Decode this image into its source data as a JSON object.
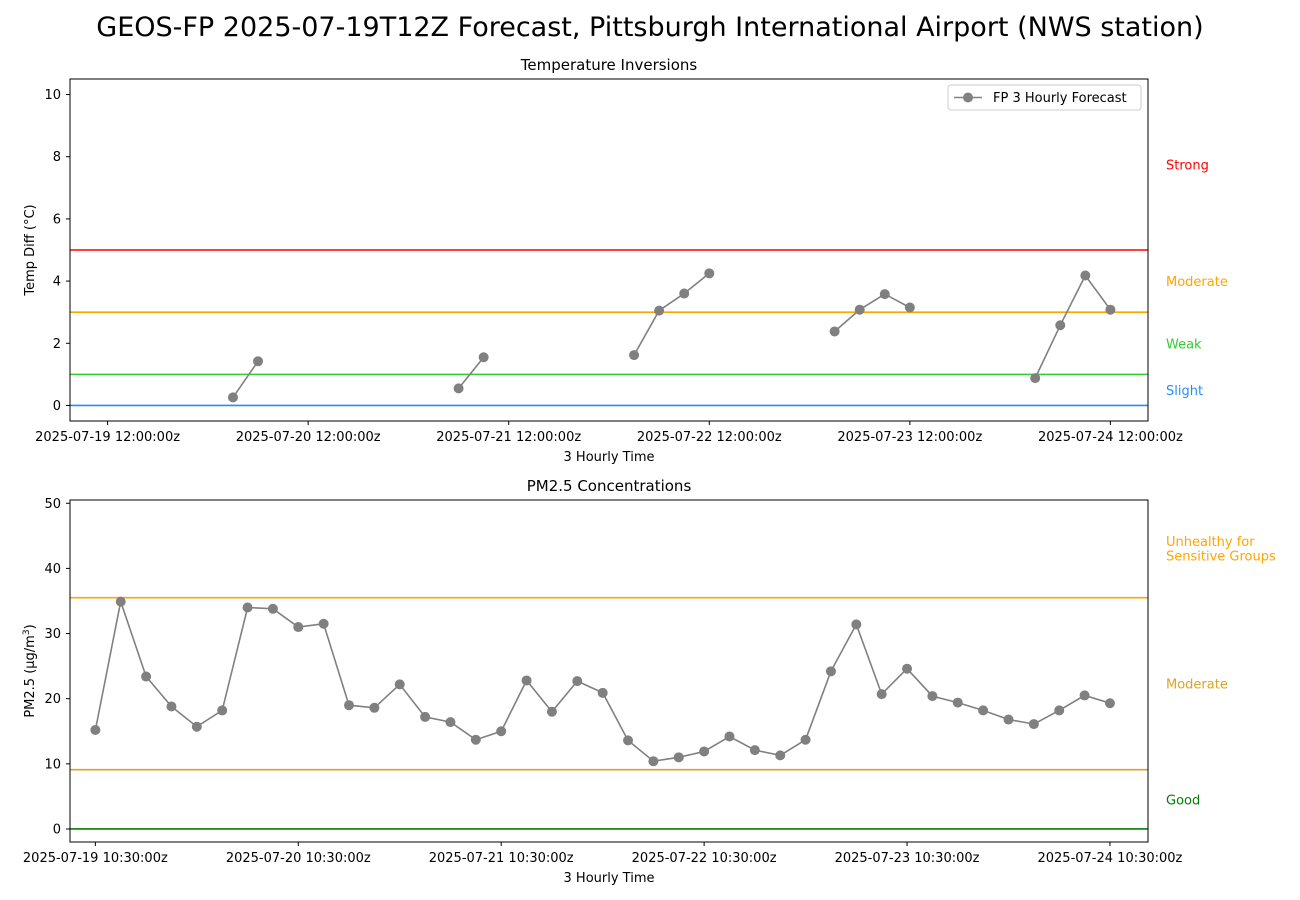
{
  "suptitle": "GEOS-FP 2025-07-19T12Z Forecast, Pittsburgh International Airport (NWS station)",
  "chart_data": [
    {
      "type": "line",
      "title": "Temperature Inversions",
      "xlabel": "3 Hourly Time",
      "ylabel": "Temp Diff (°C)",
      "ylim": [
        -0.5,
        10.5
      ],
      "yticks": [
        0,
        2,
        4,
        6,
        8,
        10
      ],
      "xlim": [
        -1.5,
        41.5
      ],
      "xtick_labels": [
        {
          "i": 0,
          "label": "2025-07-19 12:00:00z"
        },
        {
          "i": 8,
          "label": "2025-07-20 12:00:00z"
        },
        {
          "i": 16,
          "label": "2025-07-21 12:00:00z"
        },
        {
          "i": 24,
          "label": "2025-07-22 12:00:00z"
        },
        {
          "i": 32,
          "label": "2025-07-23 12:00:00z"
        },
        {
          "i": 40,
          "label": "2025-07-24 12:00:00z"
        }
      ],
      "legend": {
        "label": "FP 3 Hourly Forecast",
        "placement": "upper right"
      },
      "grid": false,
      "series": [
        {
          "name": "FP 3 Hourly Forecast",
          "color": "#808080",
          "segments": [
            [
              {
                "i": 5,
                "y": 0.26
              },
              {
                "i": 6,
                "y": 1.42
              }
            ],
            [
              {
                "i": 14,
                "y": 0.55
              },
              {
                "i": 15,
                "y": 1.55
              }
            ],
            [
              {
                "i": 21,
                "y": 1.62
              },
              {
                "i": 22,
                "y": 3.05
              },
              {
                "i": 23,
                "y": 3.6
              },
              {
                "i": 24,
                "y": 4.25
              }
            ],
            [
              {
                "i": 29,
                "y": 2.38
              },
              {
                "i": 30,
                "y": 3.08
              },
              {
                "i": 31,
                "y": 3.58
              },
              {
                "i": 32,
                "y": 3.15
              }
            ],
            [
              {
                "i": 37,
                "y": 0.88
              },
              {
                "i": 38,
                "y": 2.58
              },
              {
                "i": 39,
                "y": 4.18
              },
              {
                "i": 40,
                "y": 3.08
              }
            ]
          ]
        }
      ],
      "thresholds": [
        {
          "y": 0,
          "color": "#1e90ff"
        },
        {
          "y": 1,
          "color": "#32cd32"
        },
        {
          "y": 3,
          "color": "#ffa500"
        },
        {
          "y": 5,
          "color": "#ff0000"
        }
      ],
      "category_labels": [
        {
          "label": "Slight",
          "y": 0.5,
          "color": "#1e90ff"
        },
        {
          "label": "Weak",
          "y": 2.0,
          "color": "#32cd32"
        },
        {
          "label": "Moderate",
          "y": 4.0,
          "color": "#ffa500"
        },
        {
          "label": "Strong",
          "y": 7.75,
          "color": "#ff0000"
        }
      ]
    },
    {
      "type": "line",
      "title": "PM2.5 Concentrations",
      "xlabel": "3 Hourly Time",
      "ylabel": "PM2.5 (µg/m",
      "ylabel_sup": "3",
      "ylabel_end": ")",
      "ylim": [
        -2,
        50.5
      ],
      "yticks": [
        0,
        10,
        20,
        30,
        40,
        50
      ],
      "xlim": [
        -1,
        41.5
      ],
      "xtick_labels": [
        {
          "i": 0,
          "label": "2025-07-19 10:30:00z"
        },
        {
          "i": 8,
          "label": "2025-07-20 10:30:00z"
        },
        {
          "i": 16,
          "label": "2025-07-21 10:30:00z"
        },
        {
          "i": 24,
          "label": "2025-07-22 10:30:00z"
        },
        {
          "i": 32,
          "label": "2025-07-23 10:30:00z"
        },
        {
          "i": 40,
          "label": "2025-07-24 10:30:00z"
        }
      ],
      "grid": false,
      "series": [
        {
          "color": "#808080",
          "values": [
            15.2,
            34.9,
            23.4,
            18.8,
            15.7,
            18.2,
            34.0,
            33.8,
            31.0,
            31.5,
            19.0,
            18.6,
            22.2,
            17.2,
            16.4,
            13.7,
            15.0,
            22.8,
            18.0,
            22.7,
            20.9,
            13.6,
            10.4,
            11.0,
            11.9,
            14.2,
            12.1,
            11.3,
            13.7,
            24.2,
            31.4,
            20.7,
            24.6,
            20.4,
            19.4,
            18.2,
            16.8,
            16.1,
            18.2,
            20.5,
            19.3
          ]
        }
      ],
      "thresholds": [
        {
          "y": 0,
          "color": "#008000"
        },
        {
          "y": 9.1,
          "color": "#daa520"
        },
        {
          "y": 35.5,
          "color": "#ffa500"
        }
      ],
      "category_labels": [
        {
          "label": "Good",
          "y": 4.5,
          "color": "#008000"
        },
        {
          "label": "Moderate",
          "y": 22.3,
          "color": "#daa520"
        },
        {
          "label": "Unhealthy for",
          "y": 44.2,
          "color": "#ffa500"
        },
        {
          "label": "Sensitive Groups",
          "y": 42.0,
          "color": "#ffa500"
        }
      ]
    }
  ]
}
